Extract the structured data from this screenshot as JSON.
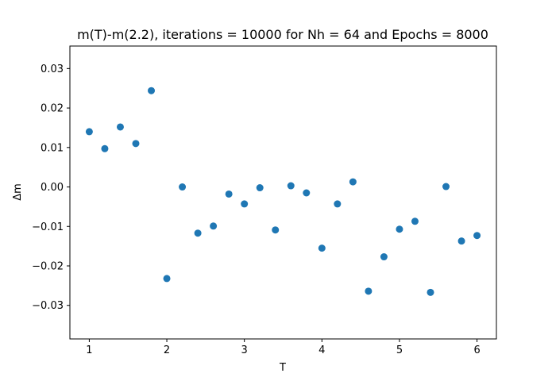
{
  "chart_data": {
    "type": "scatter",
    "title": "m(T)-m(2.2), iterations = 10000 for Nh = 64 and Epochs = 8000",
    "xlabel": "T",
    "ylabel": "Δm",
    "xlim": [
      0.75,
      6.25
    ],
    "ylim": [
      -0.0385,
      0.0357
    ],
    "xticks": [
      1,
      2,
      3,
      4,
      5,
      6
    ],
    "xtick_labels": [
      "1",
      "2",
      "3",
      "4",
      "5",
      "6"
    ],
    "yticks": [
      -0.03,
      -0.02,
      -0.01,
      0.0,
      0.01,
      0.02,
      0.03
    ],
    "ytick_labels": [
      "−0.03",
      "−0.02",
      "−0.01",
      "0.00",
      "0.01",
      "0.02",
      "0.03"
    ],
    "grid": false,
    "marker_color": "#1f77b4",
    "series": [
      {
        "x": [
          1.0,
          1.2,
          1.4,
          1.6,
          1.8,
          2.0,
          2.2,
          2.4,
          2.6,
          2.8,
          3.0,
          3.2,
          3.4,
          3.6,
          3.8,
          4.0,
          4.2,
          4.4,
          4.6,
          4.8,
          5.0,
          5.2,
          5.4,
          5.6,
          5.8,
          6.0
        ],
        "y": [
          0.014,
          0.0097,
          0.0152,
          0.011,
          0.0244,
          -0.0232,
          0.0,
          -0.0117,
          -0.0099,
          -0.0018,
          -0.0043,
          -0.0002,
          -0.0109,
          0.0003,
          -0.0015,
          -0.0155,
          -0.0043,
          0.0013,
          -0.0264,
          -0.0177,
          -0.0107,
          -0.0087,
          -0.0267,
          0.0001,
          -0.0137,
          -0.0123
        ]
      }
    ]
  }
}
